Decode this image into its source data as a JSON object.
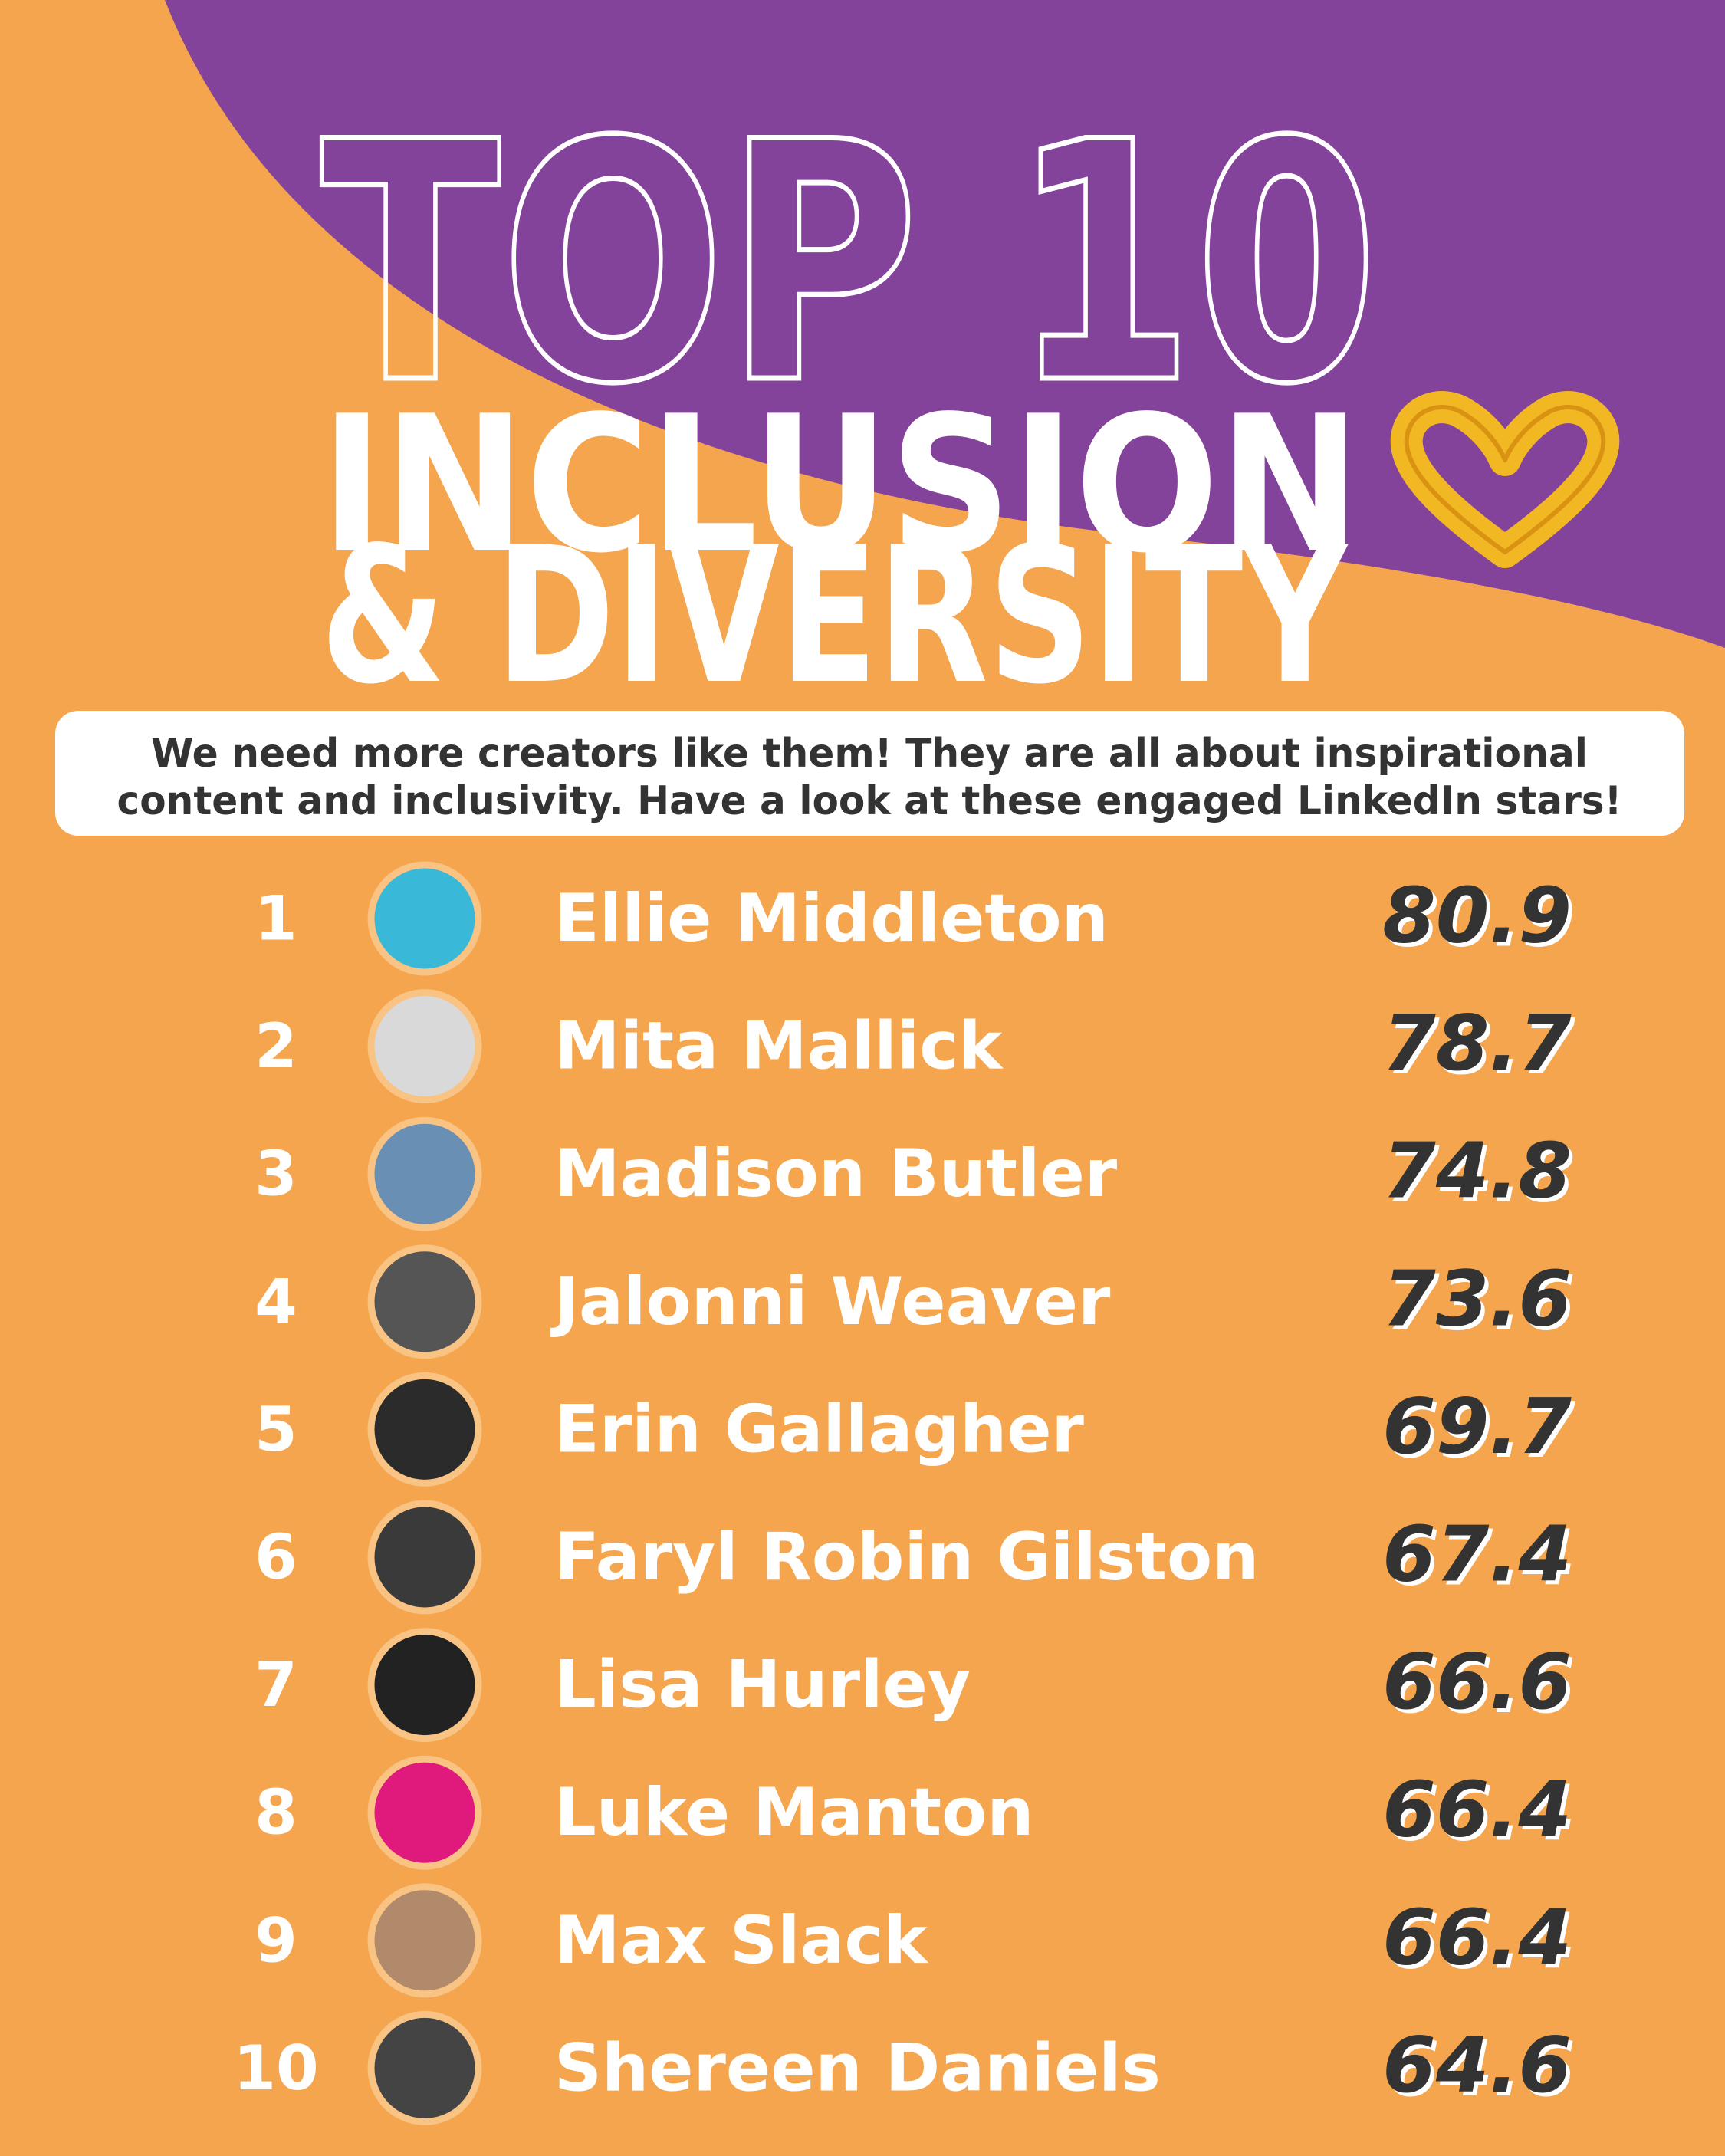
{
  "header": {
    "title": "TOP 10",
    "title_lines": [
      "INCLUSION",
      "& DIVERSITY"
    ]
  },
  "intro": [
    "We need more creators like them! They are all about inspirational",
    "content and inclusivity. Have a look at these engaged LinkedIn stars!"
  ],
  "rows": [
    {
      "rank": 1,
      "name": "Ellie Middleton",
      "score": 80.9
    },
    {
      "rank": 2,
      "name": "Mita Mallick",
      "score": 78.7
    },
    {
      "rank": 3,
      "name": "Madison Butler",
      "score": 74.8
    },
    {
      "rank": 4,
      "name": "Jalonni Weaver",
      "score": 73.6
    },
    {
      "rank": 5,
      "name": "Erin Gallagher",
      "score": 69.7
    },
    {
      "rank": 6,
      "name": "Faryl Robin Gilston",
      "score": 67.4
    },
    {
      "rank": 7,
      "name": "Lisa Hurley",
      "score": 66.6
    },
    {
      "rank": 8,
      "name": "Luke Manton",
      "score": 66.4
    },
    {
      "rank": 9,
      "name": "Max Slack",
      "score": 66.4
    },
    {
      "rank": 10,
      "name": "Shereen Daniels",
      "score": 64.6
    }
  ]
}
